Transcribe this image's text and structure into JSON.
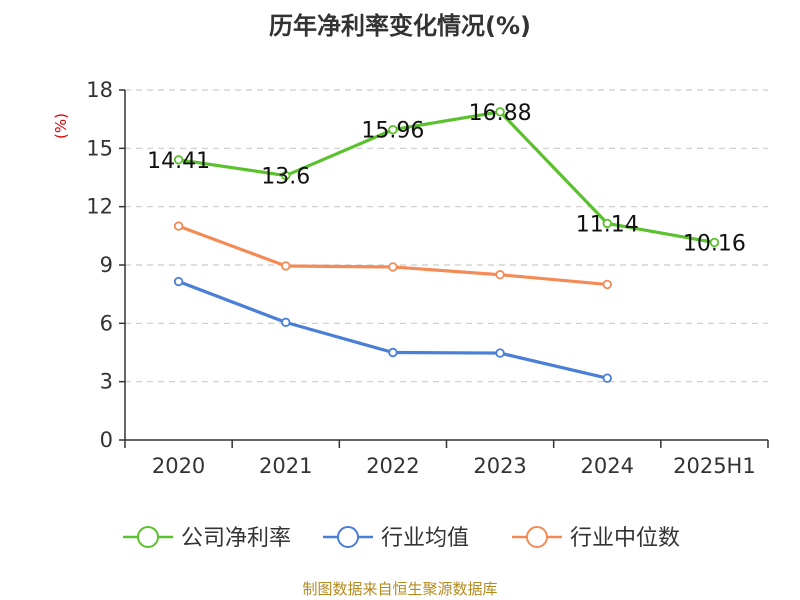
{
  "chart_data": {
    "type": "line",
    "title": "历年净利率变化情况(%)",
    "ylabel": "(%)",
    "categories": [
      "2020",
      "2021",
      "2022",
      "2023",
      "2024",
      "2025H1"
    ],
    "y_ticks": [
      "0",
      "3",
      "6",
      "9",
      "12",
      "15",
      "18"
    ],
    "ylim": [
      0,
      18
    ],
    "grid": true,
    "legend_position": "bottom",
    "series": [
      {
        "name": "公司净利率",
        "color": "#5cc12e",
        "values": [
          14.41,
          13.6,
          15.96,
          16.88,
          11.14,
          10.16
        ],
        "labels": [
          "14.41",
          "13.6",
          "15.96",
          "16.88",
          "11.14",
          "10.16"
        ]
      },
      {
        "name": "行业均值",
        "color": "#4a7fd8",
        "values": [
          8.15,
          6.05,
          4.5,
          4.47,
          3.18,
          null
        ]
      },
      {
        "name": "行业中位数",
        "color": "#f48b57",
        "values": [
          11.0,
          8.95,
          8.9,
          8.5,
          8.0,
          null
        ]
      }
    ]
  },
  "source_text": "制图数据来自恒生聚源数据库"
}
